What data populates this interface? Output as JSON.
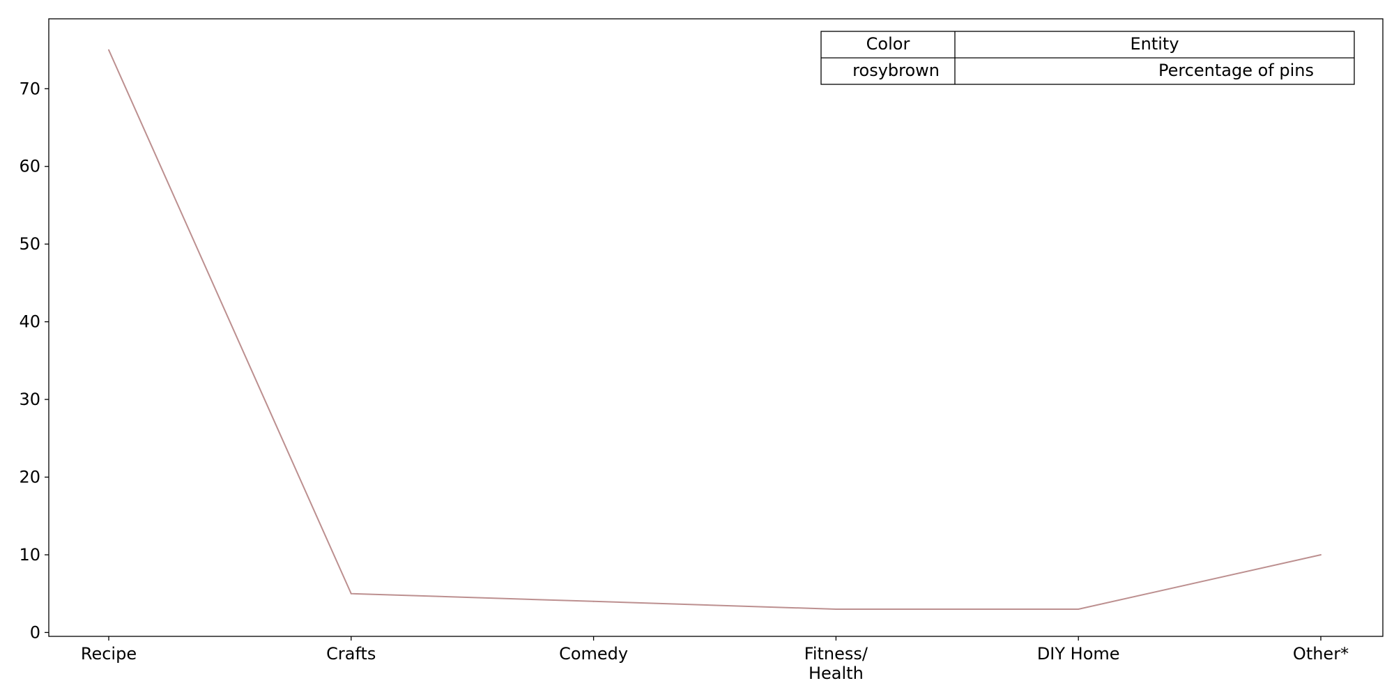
{
  "chart_data": {
    "type": "line",
    "categories": [
      [
        "Recipe"
      ],
      [
        "Crafts"
      ],
      [
        "Comedy"
      ],
      [
        "Fitness/",
        "Health"
      ],
      [
        "DIY Home"
      ],
      [
        "Other*"
      ]
    ],
    "series": [
      {
        "name": "Percentage of pins",
        "values": [
          75,
          5,
          4,
          3,
          3,
          10
        ],
        "color": "#bc8f8f"
      }
    ],
    "ylim": [
      -0.5,
      79
    ],
    "yticks": [
      0,
      10,
      20,
      30,
      40,
      50,
      60,
      70
    ],
    "title": "",
    "xlabel": "",
    "ylabel": "",
    "grid": false,
    "legend": {
      "placement": "top-right",
      "header": [
        "Color",
        "Entity"
      ],
      "rows": [
        [
          "rosybrown",
          "Percentage of pins"
        ]
      ]
    }
  }
}
